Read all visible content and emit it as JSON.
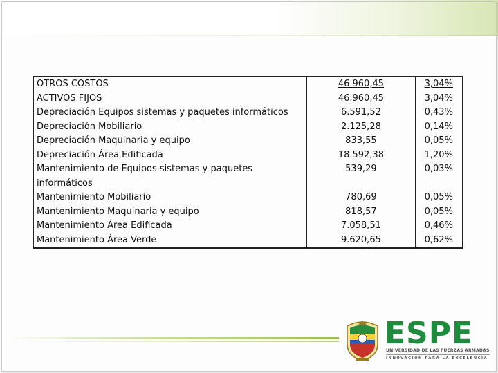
{
  "table": {
    "rows": [
      {
        "desc": "OTROS COSTOS",
        "value": "46.960,45",
        "pct": "3,04%",
        "underline": true
      },
      {
        "desc": "ACTIVOS FIJOS",
        "value": "46.960,45",
        "pct": "3,04%",
        "underline": true
      },
      {
        "desc": "Depreciación Equipos sistemas y paquetes informáticos",
        "value": "6.591,52",
        "pct": "0,43%"
      },
      {
        "desc": "Depreciación Mobiliario",
        "value": "2.125,28",
        "pct": "0,14%"
      },
      {
        "desc": "Depreciación Maquinaria y equipo",
        "value": "833,55",
        "pct": "0,05%"
      },
      {
        "desc": "Depreciación Área Edificada",
        "value": "18.592,38",
        "pct": "1,20%"
      },
      {
        "desc": "Mantenimiento de Equipos sistemas y paquetes informáticos",
        "value": "539,29",
        "pct": "0,03%"
      },
      {
        "desc": "Mantenimiento Mobiliario",
        "value": "780,69",
        "pct": "0,05%"
      },
      {
        "desc": "Mantenimiento Maquinaria y equipo",
        "value": "818,57",
        "pct": "0,05%"
      },
      {
        "desc": "Mantenimiento Área Edificada",
        "value": "7.058,51",
        "pct": "0,46%"
      },
      {
        "desc": "Mantenimiento Área Verde",
        "value": "9.620,65",
        "pct": "0,62%"
      }
    ]
  },
  "logo": {
    "name": "ESPE",
    "university": "UNIVERSIDAD DE LAS FUERZAS ARMADAS",
    "motto": "INNOVACIÓN PARA LA EXCELENCIA",
    "brand_color": "#1e8c3c"
  }
}
